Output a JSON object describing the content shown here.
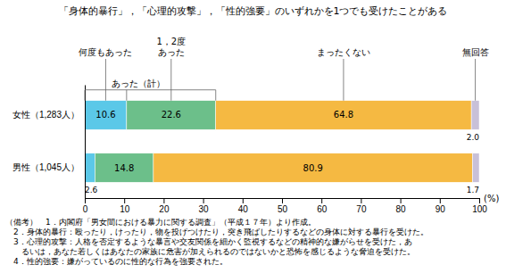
{
  "chart_data": {
    "type": "bar",
    "orientation": "horizontal",
    "stacked": true,
    "data_labels": true,
    "grid": false,
    "title": "「身体的暴行」，「心理的攻撃」，「性的強要」のいずれかを1つでも受けたことがある",
    "categories": [
      "女性（1,283人）",
      "男性（1,045人）"
    ],
    "series": [
      {
        "name": "何度もあった",
        "color": "#5bc8e8",
        "values": [
          10.6,
          2.6
        ],
        "value_labels": [
          "10.6",
          "2.6"
        ]
      },
      {
        "name": "1，2度\nあった",
        "color": "#6cbf8a",
        "values": [
          22.6,
          14.8
        ],
        "value_labels": [
          "22.6",
          "14.8"
        ]
      },
      {
        "name": "まったくない",
        "color": "#f5b942",
        "values": [
          64.8,
          80.9
        ],
        "value_labels": [
          "64.8",
          "80.9"
        ]
      },
      {
        "name": "無回答",
        "color": "#c8c0d8",
        "values": [
          2.0,
          1.7
        ],
        "value_labels": [
          "2.0",
          "1.7"
        ]
      }
    ],
    "xlim": [
      0,
      100
    ],
    "xticks": [
      0,
      10,
      20,
      30,
      40,
      50,
      60,
      70,
      80,
      90,
      100
    ],
    "xlabel": "(%)",
    "annotations": [
      "あった（計）"
    ],
    "notes": [
      "（備考）　1．内閣府「男女間における暴力に関する調査」（平成１７年）より作成。",
      "　2．身体的暴行：殴ったり，けったり，物を投げつけたり，突き飛ばしたりするなどの身体に対する暴行を受けた。",
      "　3．心理的攻撃：人格を否定するような暴言や交友関係を細かく監視するなどの精神的な嫌がらせを受けた，あ",
      "　　るいは，あなた若しくはあなたの家族に危害が加えられるのではないかと恐怖を感じるような脅迫を受けた。",
      "　4．性的強要：嫌がっているのに性的な行為を強要された。"
    ]
  }
}
